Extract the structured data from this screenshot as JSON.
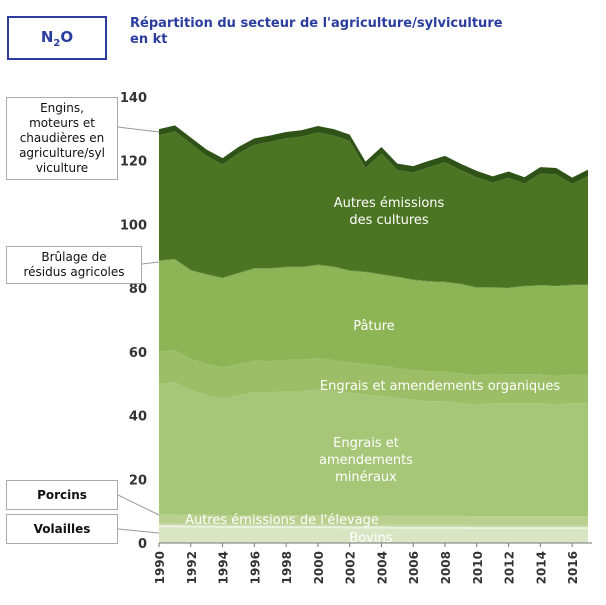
{
  "header": {
    "badge_main": "N",
    "badge_sub": "2",
    "badge_end": "O",
    "title_line1": "Répartition du secteur de l'agriculture/sylviculture",
    "title_line2": "en kt"
  },
  "side_labels": {
    "engins": [
      "Engins,",
      "moteurs et",
      "chaudières en",
      "agriculture/syl",
      "viculture"
    ],
    "brulage": [
      "Brûlage de",
      "résidus agricoles"
    ],
    "porcins": "Porcins",
    "volailles": "Volailles"
  },
  "chart_data": {
    "type": "area",
    "stacked": true,
    "title": "Répartition du secteur de l'agriculture/sylviculture en kt",
    "xlabel": "",
    "ylabel": "",
    "ylim": [
      0,
      140
    ],
    "yticks": [
      0,
      20,
      40,
      60,
      80,
      100,
      120,
      140
    ],
    "xtick_labels": [
      "1990",
      "1992",
      "1994",
      "1996",
      "1998",
      "2000",
      "2002",
      "2004",
      "2006",
      "2008",
      "2010",
      "2012",
      "2014",
      "2016"
    ],
    "x": [
      1990,
      1991,
      1992,
      1993,
      1994,
      1995,
      1996,
      1997,
      1998,
      1999,
      2000,
      2001,
      2002,
      2003,
      2004,
      2005,
      2006,
      2007,
      2008,
      2009,
      2010,
      2011,
      2012,
      2013,
      2014,
      2015,
      2016,
      2017
    ],
    "grid": false,
    "legend": "inline labels",
    "series": [
      {
        "name": "Bovins",
        "color": "#d9e6c4",
        "values": [
          5.0,
          5.0,
          4.9,
          4.9,
          4.8,
          4.8,
          4.8,
          4.8,
          4.7,
          4.7,
          4.7,
          4.7,
          4.6,
          4.6,
          4.6,
          4.5,
          4.5,
          4.5,
          4.5,
          4.5,
          4.4,
          4.4,
          4.4,
          4.4,
          4.4,
          4.4,
          4.4,
          4.4
        ]
      },
      {
        "name": "Volailles",
        "color": "#eaf1dd",
        "values": [
          0.6,
          0.6,
          0.6,
          0.6,
          0.6,
          0.6,
          0.6,
          0.6,
          0.6,
          0.6,
          0.6,
          0.6,
          0.6,
          0.6,
          0.6,
          0.6,
          0.6,
          0.6,
          0.6,
          0.6,
          0.6,
          0.6,
          0.6,
          0.6,
          0.6,
          0.6,
          0.6,
          0.6
        ]
      },
      {
        "name": "Porcins",
        "color": "#c3d7a4",
        "values": [
          0.6,
          0.6,
          0.6,
          0.6,
          0.6,
          0.6,
          0.6,
          0.6,
          0.6,
          0.6,
          0.6,
          0.6,
          0.6,
          0.6,
          0.6,
          0.6,
          0.6,
          0.6,
          0.6,
          0.6,
          0.6,
          0.6,
          0.6,
          0.6,
          0.6,
          0.6,
          0.6,
          0.6
        ]
      },
      {
        "name": "Autres émissions de l'élevage",
        "color": "#b9d08f",
        "values": [
          2.8,
          2.8,
          2.8,
          2.8,
          2.8,
          2.8,
          2.8,
          2.8,
          2.8,
          2.8,
          2.8,
          2.8,
          2.8,
          2.8,
          2.8,
          2.8,
          2.8,
          2.8,
          2.8,
          2.8,
          2.8,
          2.8,
          2.8,
          2.8,
          2.8,
          2.8,
          2.8,
          2.8
        ]
      },
      {
        "name": "Engrais et amendements minéraux",
        "color": "#a6c678",
        "values": [
          41.0,
          41.5,
          39.0,
          37.5,
          36.5,
          37.5,
          38.5,
          38.5,
          39.0,
          39.0,
          39.5,
          39.0,
          38.5,
          38.0,
          37.5,
          37.0,
          36.5,
          36.0,
          36.0,
          35.5,
          35.0,
          35.5,
          35.5,
          35.5,
          35.5,
          35.0,
          35.5,
          35.5
        ]
      },
      {
        "name": "Engrais et amendements organiques",
        "color": "#9bbe66",
        "values": [
          10.0,
          10.0,
          9.9,
          9.8,
          9.8,
          9.8,
          9.9,
          9.8,
          9.8,
          9.8,
          9.8,
          9.7,
          9.6,
          9.5,
          9.5,
          9.4,
          9.3,
          9.3,
          9.3,
          9.2,
          9.2,
          9.2,
          9.1,
          9.1,
          9.1,
          9.0,
          9.0,
          9.0
        ]
      },
      {
        "name": "Pâture",
        "color": "#8db556",
        "values": [
          28.5,
          28.5,
          27.7,
          28.0,
          28.0,
          28.5,
          28.9,
          29.0,
          29.0,
          29.0,
          29.2,
          29.2,
          28.7,
          28.9,
          28.6,
          28.5,
          28.2,
          28.2,
          28.0,
          28.0,
          27.5,
          27.0,
          27.0,
          27.5,
          27.8,
          28.2,
          28.0,
          28.0
        ]
      },
      {
        "name": "Brûlage de résidus agricoles",
        "color": "#5f8a2e",
        "values": [
          0.2,
          0.2,
          0.2,
          0.2,
          0.2,
          0.2,
          0.2,
          0.2,
          0.2,
          0.2,
          0.2,
          0.2,
          0.2,
          0.2,
          0.2,
          0.2,
          0.2,
          0.2,
          0.2,
          0.2,
          0.2,
          0.2,
          0.2,
          0.2,
          0.2,
          0.2,
          0.2,
          0.2
        ]
      },
      {
        "name": "Autres émissions des cultures",
        "color": "#4b7523",
        "values": [
          39.3,
          40.0,
          39.7,
          37.1,
          35.5,
          37.5,
          38.7,
          39.6,
          40.3,
          40.9,
          41.5,
          41.1,
          40.6,
          32.5,
          37.9,
          33.5,
          33.6,
          35.8,
          37.5,
          35.6,
          34.5,
          32.8,
          34.4,
          32.1,
          35.0,
          34.9,
          31.6,
          34.1
        ]
      },
      {
        "name": "Engins, moteurs et chaudières en agriculture/sylviculture",
        "color": "#2f5216",
        "values": [
          1.9,
          1.9,
          1.9,
          2.0,
          2.0,
          2.0,
          2.0,
          2.0,
          2.0,
          2.0,
          2.0,
          2.0,
          2.0,
          2.0,
          2.0,
          2.0,
          2.0,
          2.0,
          2.0,
          2.0,
          2.0,
          2.0,
          2.0,
          2.0,
          2.0,
          2.0,
          2.0,
          2.0
        ]
      }
    ],
    "area_labels": {
      "autres_cultures": [
        "Autres émissions",
        "des cultures"
      ],
      "pature": "Pâture",
      "engrais_org": "Engrais et amendements organiques",
      "engrais_min": [
        "Engrais et",
        "amendements",
        "minéraux"
      ],
      "autres_elevage": "Autres émissions de l'élevage",
      "bovins": "Bovins"
    }
  }
}
